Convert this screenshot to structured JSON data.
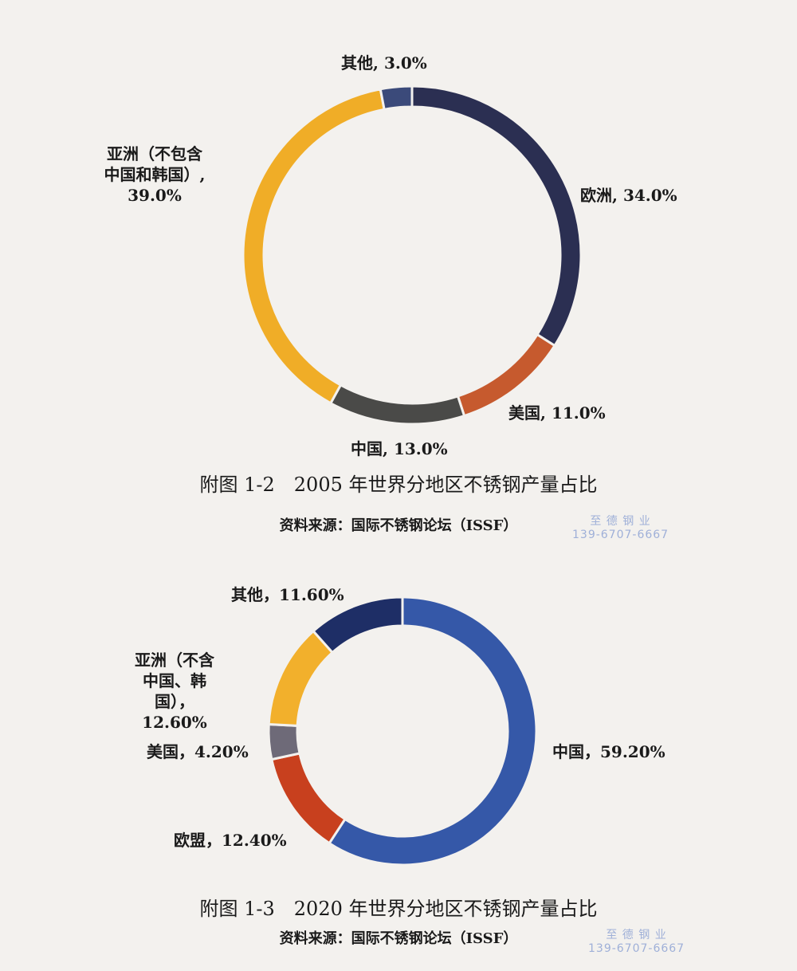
{
  "chart_data": [
    {
      "type": "donut",
      "title": "附图 1-2　2005 年世界分地区不锈钢产量占比",
      "source": "资料来源：国际不锈钢论坛（ISSF）",
      "label_separator": ", ",
      "categories": [
        "欧洲",
        "美国",
        "中国",
        "亚洲（不包含中国和韩国）",
        "其他"
      ],
      "values": [
        34.0,
        11.0,
        13.0,
        39.0,
        3.0
      ],
      "value_labels": [
        "34.0%",
        "11.0%",
        "13.0%",
        "39.0%",
        "3.0%"
      ],
      "colors": [
        "#2b2f52",
        "#c65a2e",
        "#4a4a48",
        "#f0ad27",
        "#3b4a7a"
      ]
    },
    {
      "type": "donut",
      "title": "附图 1-3　2020 年世界分地区不锈钢产量占比",
      "source": "资料来源：国际不锈钢论坛（ISSF）",
      "label_separator": "，",
      "categories": [
        "中国",
        "欧盟",
        "美国",
        "亚洲（不含中国、韩国）",
        "其他"
      ],
      "values": [
        59.2,
        12.4,
        4.2,
        12.6,
        11.6
      ],
      "value_labels": [
        "59.20%",
        "12.40%",
        "4.20%",
        "12.60%",
        "11.60%"
      ],
      "colors": [
        "#3558a8",
        "#c8401e",
        "#6e6a78",
        "#f2b02c",
        "#1e2e66"
      ]
    }
  ],
  "watermarks": [
    {
      "name": "至 德 钢 业",
      "phone": "139-6707-6667"
    },
    {
      "name": "至 德 钢 业",
      "phone": "139-6707-6667"
    }
  ]
}
